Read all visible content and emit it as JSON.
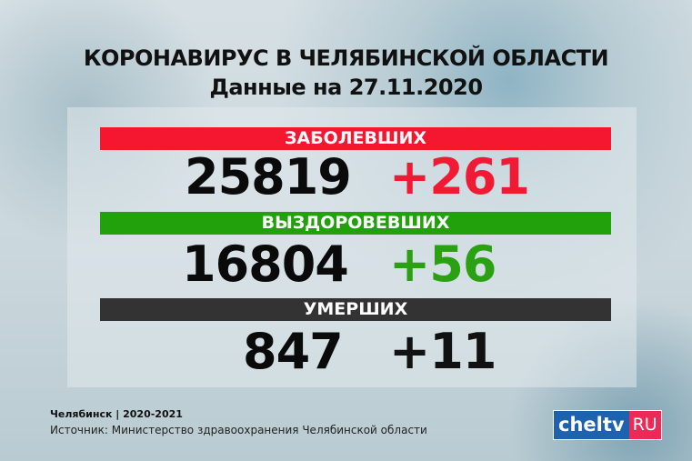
{
  "title": "КОРОНАВИРУС В ЧЕЛЯБИНСКОЙ ОБЛАСТИ",
  "subtitle": "Данные на 27.11.2020",
  "stats": [
    {
      "label": "ЗАБОЛЕВШИХ",
      "total": "25819",
      "delta": "+261",
      "bar_color": "#f5172f",
      "delta_color": "#f01a35"
    },
    {
      "label": "ВЫЗДОРОВЕВШИХ",
      "total": "16804",
      "delta": "+56",
      "bar_color": "#22a10c",
      "delta_color": "#2aa012"
    },
    {
      "label": "УМЕРШИХ",
      "total": "847",
      "delta": "+11",
      "bar_color": "#333333",
      "delta_color": "#111111"
    }
  ],
  "footer": {
    "city": "Челябинск | 2020-2021",
    "source": "Источник: Министерство здравоохранения Челябинской области"
  },
  "logo": {
    "main": "cheltv",
    "suffix": "RU"
  }
}
